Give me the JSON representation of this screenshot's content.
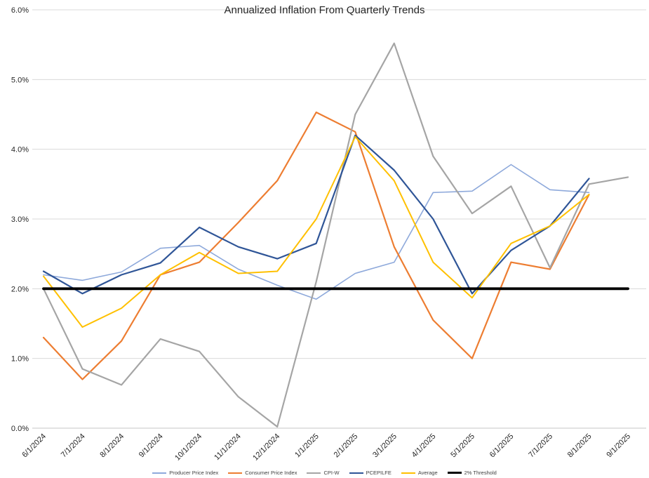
{
  "chart_data": {
    "type": "line",
    "title": "Annualized Inflation From Quarterly Trends",
    "categories": [
      "6/1/2024",
      "7/1/2024",
      "8/1/2024",
      "9/1/2024",
      "10/1/2024",
      "11/1/2024",
      "12/1/2024",
      "1/1/2025",
      "2/1/2025",
      "3/1/2025",
      "4/1/2025",
      "5/1/2025",
      "6/1/2025",
      "7/1/2025",
      "8/1/2025",
      "9/1/2025"
    ],
    "y_axis": {
      "min": 0,
      "max": 6,
      "step": 1,
      "labels": [
        "0.0%",
        "1.0%",
        "2.0%",
        "3.0%",
        "4.0%",
        "5.0%",
        "6.0%"
      ]
    },
    "grid": true,
    "legend_position": "bottom",
    "x_labels_rotation": -45,
    "series": [
      {
        "name": "Producer Price Index",
        "color": "#8EA9DB",
        "width": 1.6,
        "values": [
          2.2,
          2.12,
          2.24,
          2.58,
          2.62,
          2.28,
          2.05,
          1.85,
          2.22,
          2.38,
          3.38,
          3.4,
          3.78,
          3.42,
          3.38,
          null
        ]
      },
      {
        "name": "Consumer Price Index",
        "color": "#ED7D31",
        "width": 2.2,
        "values": [
          1.3,
          0.7,
          1.25,
          2.2,
          2.38,
          2.95,
          3.55,
          4.53,
          4.25,
          2.6,
          1.55,
          1.0,
          2.38,
          2.28,
          3.35,
          null
        ]
      },
      {
        "name": "CPI-W",
        "color": "#A5A5A5",
        "width": 2.2,
        "values": [
          2.0,
          0.85,
          0.62,
          1.28,
          1.1,
          0.45,
          0.02,
          2.1,
          4.5,
          5.52,
          3.9,
          3.08,
          3.47,
          2.3,
          3.5,
          3.6
        ]
      },
      {
        "name": "PCEPILFE",
        "color": "#2F5597",
        "width": 2.2,
        "values": [
          2.25,
          1.93,
          2.2,
          2.37,
          2.88,
          2.6,
          2.43,
          2.65,
          4.2,
          3.7,
          3.0,
          1.93,
          2.55,
          2.9,
          3.58,
          null
        ]
      },
      {
        "name": "Average",
        "color": "#FFC000",
        "width": 2.0,
        "values": [
          2.18,
          1.45,
          1.72,
          2.2,
          2.52,
          2.22,
          2.25,
          3.0,
          4.18,
          3.55,
          2.38,
          1.87,
          2.65,
          2.9,
          3.35,
          null
        ]
      },
      {
        "name": "2% Threshold",
        "color": "#000000",
        "width": 3.8,
        "values": [
          2,
          2,
          2,
          2,
          2,
          2,
          2,
          2,
          2,
          2,
          2,
          2,
          2,
          2,
          2,
          2
        ]
      }
    ]
  }
}
